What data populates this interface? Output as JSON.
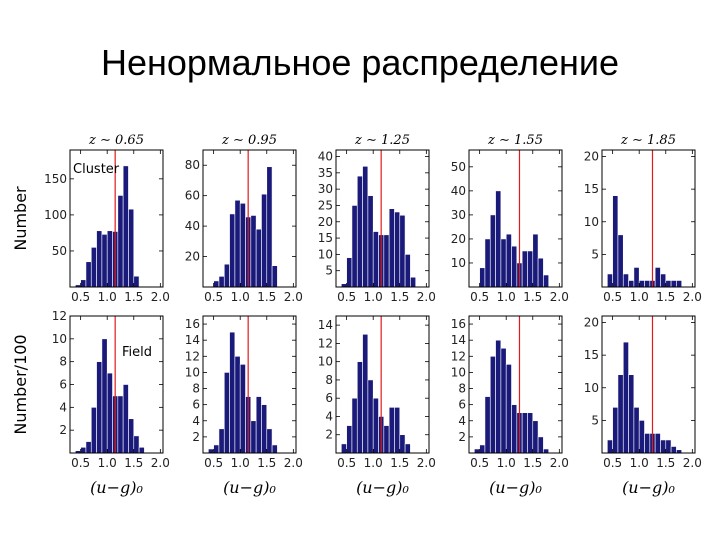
{
  "slide": {
    "title": "Ненормальное распределение"
  },
  "figure": {
    "row_labels": [
      "Number",
      "Number/100"
    ],
    "column_xlabel": "(u−g)₀",
    "annotations": [
      "Cluster",
      "Field"
    ],
    "colors": {
      "bar": "#1a1a7a",
      "bar_edge": "#ffffff",
      "marker_line": "#e31a1c"
    }
  },
  "chart_data": [
    {
      "type": "bar",
      "panel": "cluster-z0.65",
      "title": "z ∼ 0.65",
      "xlim": [
        0.3,
        2.05
      ],
      "ylim": [
        0,
        190
      ],
      "xticks": [
        0.5,
        1.0,
        1.5,
        2.0
      ],
      "yticks": [
        50,
        100,
        150
      ],
      "xticklabels": [
        "0.5",
        "1.0",
        "1.5",
        "2.0"
      ],
      "marker_x": 1.15,
      "bin_edges": [
        0.3,
        0.4,
        0.5,
        0.6,
        0.7,
        0.8,
        0.9,
        1.0,
        1.1,
        1.2,
        1.3,
        1.4,
        1.5,
        1.6,
        1.7,
        1.8,
        1.9
      ],
      "values": [
        0,
        3,
        10,
        35,
        55,
        78,
        73,
        78,
        77,
        127,
        168,
        108,
        15,
        0,
        0,
        0
      ]
    },
    {
      "type": "bar",
      "panel": "cluster-z0.95",
      "title": "z ∼ 0.95",
      "xlim": [
        0.3,
        2.05
      ],
      "ylim": [
        0,
        90
      ],
      "xticks": [
        0.5,
        1.0,
        1.5,
        2.0
      ],
      "yticks": [
        20,
        40,
        60,
        80
      ],
      "xticklabels": [
        "0.5",
        "1.0",
        "1.5",
        "2.0"
      ],
      "marker_x": 1.15,
      "bin_edges": [
        0.3,
        0.4,
        0.5,
        0.6,
        0.7,
        0.8,
        0.9,
        1.0,
        1.1,
        1.2,
        1.3,
        1.4,
        1.5,
        1.6,
        1.7,
        1.8,
        1.9
      ],
      "values": [
        0,
        0,
        4,
        7,
        15,
        48,
        57,
        55,
        46,
        47,
        38,
        61,
        79,
        14,
        0,
        0
      ]
    },
    {
      "type": "bar",
      "panel": "cluster-z1.25",
      "title": "z ∼ 1.25",
      "xlim": [
        0.3,
        2.05
      ],
      "ylim": [
        0,
        42
      ],
      "xticks": [
        0.5,
        1.0,
        1.5,
        2.0
      ],
      "yticks": [
        5,
        10,
        15,
        20,
        25,
        30,
        35,
        40
      ],
      "xticklabels": [
        "0.5",
        "1.0",
        "1.5",
        "2.0"
      ],
      "marker_x": 1.15,
      "bin_edges": [
        0.3,
        0.4,
        0.5,
        0.6,
        0.7,
        0.8,
        0.9,
        1.0,
        1.1,
        1.2,
        1.3,
        1.4,
        1.5,
        1.6,
        1.7,
        1.8,
        1.9
      ],
      "values": [
        0,
        1,
        9,
        25,
        34,
        37,
        28,
        17,
        16,
        16,
        24,
        23,
        22,
        10,
        3,
        0
      ]
    },
    {
      "type": "bar",
      "panel": "cluster-z1.55",
      "title": "z ∼ 1.55",
      "xlim": [
        0.3,
        2.05
      ],
      "ylim": [
        0,
        57
      ],
      "xticks": [
        0.5,
        1.0,
        1.5,
        2.0
      ],
      "yticks": [
        10,
        20,
        30,
        40,
        50
      ],
      "xticklabels": [
        "0.5",
        "1.0",
        "1.5",
        "2.0"
      ],
      "marker_x": 1.25,
      "bin_edges": [
        0.3,
        0.4,
        0.5,
        0.6,
        0.7,
        0.8,
        0.9,
        1.0,
        1.1,
        1.2,
        1.3,
        1.4,
        1.5,
        1.6,
        1.7,
        1.8,
        1.9
      ],
      "values": [
        0,
        0,
        8,
        20,
        30,
        40,
        20,
        22,
        17,
        10,
        15,
        15,
        22,
        12,
        5,
        0
      ]
    },
    {
      "type": "bar",
      "panel": "cluster-z1.85",
      "title": "z ∼ 1.85",
      "xlim": [
        0.3,
        2.05
      ],
      "ylim": [
        0,
        21
      ],
      "xticks": [
        0.5,
        1.0,
        1.5,
        2.0
      ],
      "yticks": [
        5,
        10,
        15,
        20
      ],
      "xticklabels": [
        "0.5",
        "1.0",
        "1.5",
        "2.0"
      ],
      "marker_x": 1.25,
      "bin_edges": [
        0.3,
        0.4,
        0.5,
        0.6,
        0.7,
        0.8,
        0.9,
        1.0,
        1.1,
        1.2,
        1.3,
        1.4,
        1.5,
        1.6,
        1.7,
        1.8,
        1.9
      ],
      "values": [
        0,
        2,
        14,
        8,
        2,
        1,
        3,
        1,
        1,
        1,
        3,
        2,
        1,
        1,
        1,
        0
      ]
    },
    {
      "type": "bar",
      "panel": "field-z0.65",
      "title": "",
      "xlim": [
        0.3,
        2.05
      ],
      "ylim": [
        0,
        12
      ],
      "xticks": [
        0.5,
        1.0,
        1.5,
        2.0
      ],
      "yticks": [
        2,
        4,
        6,
        8,
        10,
        12
      ],
      "xticklabels": [
        "0.5",
        "1.0",
        "1.5",
        "2.0"
      ],
      "marker_x": 1.15,
      "bin_edges": [
        0.3,
        0.4,
        0.5,
        0.6,
        0.7,
        0.8,
        0.9,
        1.0,
        1.1,
        1.2,
        1.3,
        1.4,
        1.5,
        1.6,
        1.7,
        1.8,
        1.9
      ],
      "values": [
        0,
        0.2,
        0.5,
        1,
        4,
        8,
        10,
        7,
        5,
        5,
        6,
        3,
        1.5,
        0.5,
        0,
        0
      ]
    },
    {
      "type": "bar",
      "panel": "field-z0.95",
      "title": "",
      "xlim": [
        0.3,
        2.05
      ],
      "ylim": [
        0,
        17
      ],
      "xticks": [
        0.5,
        1.0,
        1.5,
        2.0
      ],
      "yticks": [
        2,
        4,
        6,
        8,
        10,
        12,
        14,
        16
      ],
      "xticklabels": [
        "0.5",
        "1.0",
        "1.5",
        "2.0"
      ],
      "marker_x": 1.15,
      "bin_edges": [
        0.3,
        0.4,
        0.5,
        0.6,
        0.7,
        0.8,
        0.9,
        1.0,
        1.1,
        1.2,
        1.3,
        1.4,
        1.5,
        1.6,
        1.7,
        1.8,
        1.9
      ],
      "values": [
        0,
        0.5,
        1,
        3,
        10,
        15,
        12,
        11,
        7,
        4,
        7,
        6,
        3,
        1,
        0,
        0
      ]
    },
    {
      "type": "bar",
      "panel": "field-z1.25",
      "title": "",
      "xlim": [
        0.3,
        2.05
      ],
      "ylim": [
        0,
        15
      ],
      "xticks": [
        0.5,
        1.0,
        1.5,
        2.0
      ],
      "yticks": [
        2,
        4,
        6,
        8,
        10,
        12,
        14
      ],
      "xticklabels": [
        "0.5",
        "1.0",
        "1.5",
        "2.0"
      ],
      "marker_x": 1.15,
      "bin_edges": [
        0.3,
        0.4,
        0.5,
        0.6,
        0.7,
        0.8,
        0.9,
        1.0,
        1.1,
        1.2,
        1.3,
        1.4,
        1.5,
        1.6,
        1.7,
        1.8,
        1.9
      ],
      "values": [
        0,
        1,
        3,
        6,
        10,
        13,
        8,
        6,
        4,
        3,
        5,
        5,
        2,
        1,
        0,
        0
      ]
    },
    {
      "type": "bar",
      "panel": "field-z1.55",
      "title": "",
      "xlim": [
        0.3,
        2.05
      ],
      "ylim": [
        0,
        17
      ],
      "xticks": [
        0.5,
        1.0,
        1.5,
        2.0
      ],
      "yticks": [
        2,
        4,
        6,
        8,
        10,
        12,
        14,
        16
      ],
      "xticklabels": [
        "0.5",
        "1.0",
        "1.5",
        "2.0"
      ],
      "marker_x": 1.25,
      "bin_edges": [
        0.3,
        0.4,
        0.5,
        0.6,
        0.7,
        0.8,
        0.9,
        1.0,
        1.1,
        1.2,
        1.3,
        1.4,
        1.5,
        1.6,
        1.7,
        1.8,
        1.9
      ],
      "values": [
        0,
        0.5,
        1,
        7,
        12,
        14,
        13,
        11,
        6,
        5,
        5,
        5,
        4,
        2,
        0.5,
        0
      ]
    },
    {
      "type": "bar",
      "panel": "field-z1.85",
      "title": "",
      "xlim": [
        0.3,
        2.05
      ],
      "ylim": [
        0,
        21
      ],
      "xticks": [
        0.5,
        1.0,
        1.5,
        2.0
      ],
      "yticks": [
        5,
        10,
        15,
        20
      ],
      "xticklabels": [
        "0.5",
        "1.0",
        "1.5",
        "2.0"
      ],
      "marker_x": 1.25,
      "bin_edges": [
        0.3,
        0.4,
        0.5,
        0.6,
        0.7,
        0.8,
        0.9,
        1.0,
        1.1,
        1.2,
        1.3,
        1.4,
        1.5,
        1.6,
        1.7,
        1.8,
        1.9
      ],
      "values": [
        0,
        2,
        7,
        12,
        17,
        12,
        7,
        5,
        3,
        3,
        3,
        2,
        2,
        1,
        0.5,
        0
      ]
    }
  ]
}
